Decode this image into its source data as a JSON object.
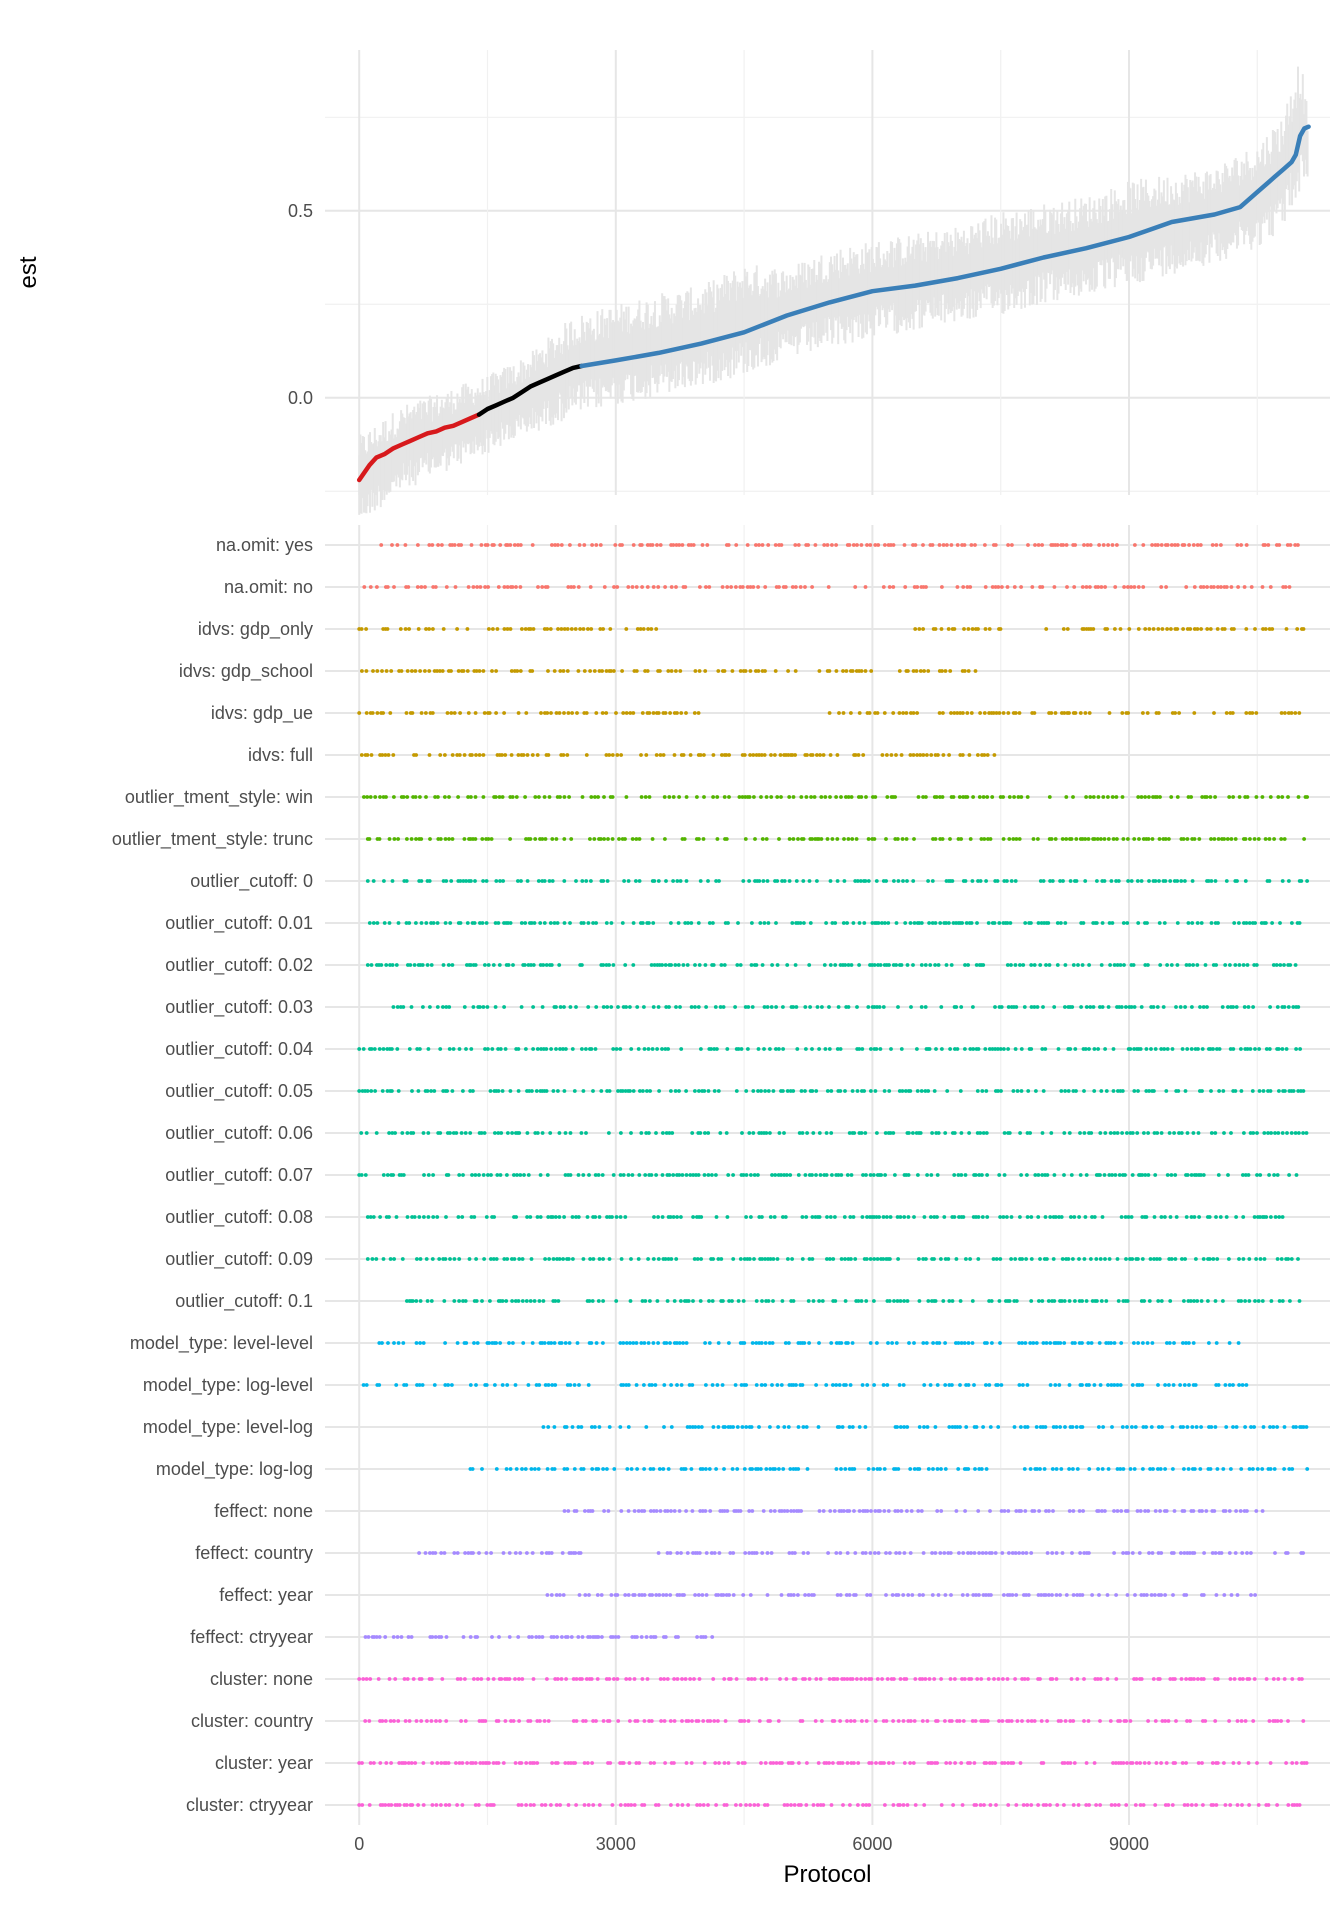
{
  "chart_data": [
    {
      "type": "line",
      "title": "",
      "xlabel": "",
      "ylabel": "est",
      "xlim": [
        -400,
        11350
      ],
      "ylim": [
        -0.26,
        0.93
      ],
      "y_ticks": [
        0.0,
        0.5
      ],
      "y_tick_labels": [
        "0.0",
        "0.5"
      ],
      "grid": true,
      "series": [
        {
          "color": "#D7191C",
          "x": [
            0,
            60,
            120,
            200,
            300,
            400,
            500,
            600,
            700,
            800,
            900,
            1000,
            1100,
            1200,
            1300,
            1400
          ],
          "y": [
            -0.22,
            -0.2,
            -0.18,
            -0.16,
            -0.15,
            -0.135,
            -0.125,
            -0.115,
            -0.105,
            -0.095,
            -0.09,
            -0.08,
            -0.075,
            -0.065,
            -0.055,
            -0.045
          ]
        },
        {
          "color": "#000000",
          "x": [
            1400,
            1500,
            1600,
            1700,
            1800,
            1900,
            2000,
            2100,
            2200,
            2300,
            2400,
            2500,
            2600
          ],
          "y": [
            -0.045,
            -0.03,
            -0.02,
            -0.01,
            0.0,
            0.015,
            0.03,
            0.04,
            0.05,
            0.06,
            0.07,
            0.08,
            0.085
          ]
        },
        {
          "color": "#3A7FB8",
          "x": [
            2600,
            3000,
            3500,
            4000,
            4500,
            5000,
            5500,
            6000,
            6500,
            7000,
            7500,
            8000,
            8500,
            9000,
            9500,
            10000,
            10300,
            10500,
            10700,
            10800,
            10900,
            10950,
            11000,
            11050,
            11100
          ],
          "y": [
            0.085,
            0.1,
            0.12,
            0.145,
            0.175,
            0.22,
            0.255,
            0.285,
            0.3,
            0.32,
            0.345,
            0.375,
            0.4,
            0.43,
            0.47,
            0.49,
            0.51,
            0.55,
            0.59,
            0.61,
            0.63,
            0.65,
            0.7,
            0.72,
            0.725
          ]
        }
      ],
      "ci_band": {
        "color": "#E5E5E5",
        "x": [
          0,
          500,
          1000,
          1500,
          2000,
          2500,
          3000,
          3500,
          4000,
          4500,
          5000,
          5500,
          6000,
          6500,
          7000,
          7500,
          8000,
          8500,
          9000,
          9500,
          10000,
          10500,
          10800,
          11000,
          11100
        ],
        "lower": [
          -0.34,
          -0.25,
          -0.2,
          -0.15,
          -0.1,
          -0.05,
          -0.02,
          0.0,
          0.03,
          0.06,
          0.1,
          0.13,
          0.16,
          0.18,
          0.2,
          0.22,
          0.25,
          0.27,
          0.3,
          0.33,
          0.36,
          0.4,
          0.45,
          0.55,
          0.58
        ],
        "upper": [
          -0.1,
          -0.02,
          0.02,
          0.06,
          0.12,
          0.22,
          0.25,
          0.28,
          0.3,
          0.36,
          0.35,
          0.4,
          0.42,
          0.44,
          0.46,
          0.5,
          0.52,
          0.54,
          0.58,
          0.6,
          0.62,
          0.68,
          0.76,
          0.92,
          0.76
        ]
      }
    },
    {
      "type": "scatter",
      "title": "",
      "xlabel": "Protocol",
      "ylabel": "",
      "xlim": [
        -400,
        11350
      ],
      "x_ticks": [
        0,
        3000,
        6000,
        9000
      ],
      "x_tick_labels": [
        "0",
        "3000",
        "6000",
        "9000"
      ],
      "grid": true,
      "rows": [
        {
          "label": "na.omit: yes",
          "color": "#F8766D",
          "x_ranges": [
            [
              200,
              11000
            ]
          ]
        },
        {
          "label": "na.omit: no",
          "color": "#F8766D",
          "x_ranges": [
            [
              0,
              11100
            ]
          ]
        },
        {
          "label": "idvs: gdp_only",
          "color": "#C49A00",
          "x_ranges": [
            [
              0,
              3500
            ],
            [
              6500,
              7500
            ],
            [
              8000,
              11100
            ]
          ]
        },
        {
          "label": "idvs: gdp_school",
          "color": "#C49A00",
          "x_ranges": [
            [
              0,
              7300
            ]
          ]
        },
        {
          "label": "idvs: gdp_ue",
          "color": "#C49A00",
          "x_ranges": [
            [
              0,
              4000
            ],
            [
              5500,
              11000
            ]
          ]
        },
        {
          "label": "idvs: full",
          "color": "#C49A00",
          "x_ranges": [
            [
              0,
              7450
            ]
          ]
        },
        {
          "label": "outlier_tment_style: win",
          "color": "#53B400",
          "x_ranges": [
            [
              0,
              11100
            ]
          ]
        },
        {
          "label": "outlier_tment_style: trunc",
          "color": "#53B400",
          "x_ranges": [
            [
              100,
              11100
            ]
          ]
        },
        {
          "label": "outlier_cutoff: 0",
          "color": "#00C094",
          "x_ranges": [
            [
              100,
              11100
            ]
          ]
        },
        {
          "label": "outlier_cutoff: 0.01",
          "color": "#00C094",
          "x_ranges": [
            [
              100,
              11000
            ]
          ]
        },
        {
          "label": "outlier_cutoff: 0.02",
          "color": "#00C094",
          "x_ranges": [
            [
              100,
              11000
            ]
          ]
        },
        {
          "label": "outlier_cutoff: 0.03",
          "color": "#00C094",
          "x_ranges": [
            [
              400,
              11000
            ]
          ]
        },
        {
          "label": "outlier_cutoff: 0.04",
          "color": "#00C094",
          "x_ranges": [
            [
              0,
              11100
            ]
          ]
        },
        {
          "label": "outlier_cutoff: 0.05",
          "color": "#00C094",
          "x_ranges": [
            [
              0,
              11100
            ]
          ]
        },
        {
          "label": "outlier_cutoff: 0.06",
          "color": "#00C094",
          "x_ranges": [
            [
              0,
              11100
            ]
          ]
        },
        {
          "label": "outlier_cutoff: 0.07",
          "color": "#00C094",
          "x_ranges": [
            [
              0,
              11100
            ]
          ]
        },
        {
          "label": "outlier_cutoff: 0.08",
          "color": "#00C094",
          "x_ranges": [
            [
              100,
              10800
            ]
          ]
        },
        {
          "label": "outlier_cutoff: 0.09",
          "color": "#00C094",
          "x_ranges": [
            [
              100,
              11000
            ]
          ]
        },
        {
          "label": "outlier_cutoff: 0.1",
          "color": "#00C094",
          "x_ranges": [
            [
              500,
              11000
            ]
          ]
        },
        {
          "label": "model_type: level-level",
          "color": "#00B6EB",
          "x_ranges": [
            [
              200,
              10300
            ]
          ]
        },
        {
          "label": "model_type: log-level",
          "color": "#00B6EB",
          "x_ranges": [
            [
              0,
              10400
            ]
          ]
        },
        {
          "label": "model_type: level-log",
          "color": "#00B6EB",
          "x_ranges": [
            [
              2100,
              11100
            ]
          ]
        },
        {
          "label": "model_type: log-log",
          "color": "#00B6EB",
          "x_ranges": [
            [
              1300,
              11100
            ]
          ]
        },
        {
          "label": "feffect: none",
          "color": "#A58AFF",
          "x_ranges": [
            [
              2400,
              10600
            ]
          ]
        },
        {
          "label": "feffect: country",
          "color": "#A58AFF",
          "x_ranges": [
            [
              700,
              2600
            ],
            [
              3500,
              11100
            ]
          ]
        },
        {
          "label": "feffect: year",
          "color": "#A58AFF",
          "x_ranges": [
            [
              2200,
              10500
            ]
          ]
        },
        {
          "label": "feffect: ctryyear",
          "color": "#A58AFF",
          "x_ranges": [
            [
              0,
              4300
            ]
          ]
        },
        {
          "label": "cluster: none",
          "color": "#FB61D7",
          "x_ranges": [
            [
              0,
              11100
            ]
          ]
        },
        {
          "label": "cluster: country",
          "color": "#FB61D7",
          "x_ranges": [
            [
              0,
              11100
            ]
          ]
        },
        {
          "label": "cluster: year",
          "color": "#FB61D7",
          "x_ranges": [
            [
              0,
              11100
            ]
          ]
        },
        {
          "label": "cluster: ctryyear",
          "color": "#FB61D7",
          "x_ranges": [
            [
              0,
              11000
            ]
          ]
        }
      ]
    }
  ]
}
